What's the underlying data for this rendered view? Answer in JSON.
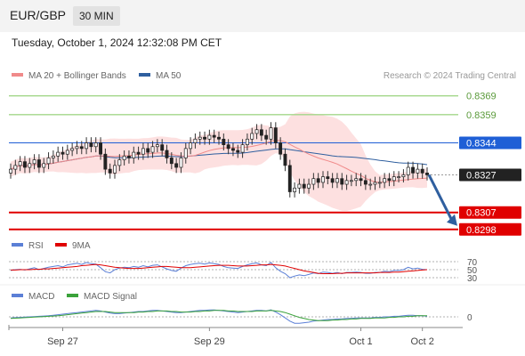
{
  "header": {
    "symbol": "EUR/GBP",
    "timeframe": "30 MIN"
  },
  "datetime": "Tuesday, October 1, 2024 12:32:08 PM CET",
  "credit": "Research © 2024 Trading Central",
  "legend_main": [
    {
      "label": "MA 20 + Bollinger Bands",
      "color": "#f08a8a"
    },
    {
      "label": "MA 50",
      "color": "#2f5f9f"
    }
  ],
  "legend_rsi": [
    {
      "label": "RSI",
      "color": "#5b7fd6"
    },
    {
      "label": "9MA",
      "color": "#e00000"
    }
  ],
  "legend_macd": [
    {
      "label": "MACD",
      "color": "#5b7fd6"
    },
    {
      "label": "MACD Signal",
      "color": "#3aa23a"
    }
  ],
  "chart_data": [
    {
      "type": "candlestick",
      "x_tick_labels": [
        "Sep 27",
        "Sep 29",
        "Oct 1",
        "Oct 2"
      ],
      "ylim": [
        0.8296,
        0.8375
      ],
      "last_price": "0.8327",
      "levels": [
        {
          "value": 0.8369,
          "label": "0.8369",
          "color": "#a3d78a",
          "kind": "resistance-light"
        },
        {
          "value": 0.8359,
          "label": "0.8359",
          "color": "#a3d78a",
          "kind": "resistance-light"
        },
        {
          "value": 0.8344,
          "label": "0.8344",
          "color": "#1f5fd6",
          "kind": "pivot"
        },
        {
          "value": 0.8327,
          "label": "0.8327",
          "color": "#222222",
          "kind": "last"
        },
        {
          "value": 0.8307,
          "label": "0.8307",
          "color": "#e00000",
          "kind": "target"
        },
        {
          "value": 0.8298,
          "label": "0.8298",
          "color": "#e00000",
          "kind": "target"
        }
      ],
      "closes": [
        0.833,
        0.8332,
        0.8334,
        0.8331,
        0.8333,
        0.8335,
        0.8331,
        0.8333,
        0.8336,
        0.8337,
        0.8339,
        0.8338,
        0.834,
        0.8341,
        0.8342,
        0.8341,
        0.8344,
        0.8342,
        0.8344,
        0.8338,
        0.833,
        0.8328,
        0.8332,
        0.8335,
        0.8337,
        0.8336,
        0.8339,
        0.8338,
        0.8341,
        0.8339,
        0.8342,
        0.8343,
        0.834,
        0.8336,
        0.8333,
        0.8331,
        0.8336,
        0.8341,
        0.8344,
        0.8346,
        0.8347,
        0.8346,
        0.8348,
        0.8347,
        0.8346,
        0.8343,
        0.8341,
        0.834,
        0.8339,
        0.8343,
        0.8346,
        0.8349,
        0.8351,
        0.8348,
        0.8346,
        0.8352,
        0.8344,
        0.8338,
        0.8332,
        0.8318,
        0.832,
        0.8322,
        0.832,
        0.8322,
        0.8325,
        0.8323,
        0.8326,
        0.8325,
        0.8323,
        0.8325,
        0.8322,
        0.8324,
        0.8324,
        0.8325,
        0.8324,
        0.8322,
        0.8322,
        0.8323,
        0.8323,
        0.8325,
        0.8324,
        0.8326,
        0.8326,
        0.8327,
        0.8331,
        0.8328,
        0.833,
        0.8328,
        0.8327
      ]
    },
    {
      "type": "line",
      "name": "RSI",
      "axis_labels": [
        "70",
        "50",
        "30"
      ],
      "series": [
        {
          "name": "RSI",
          "color": "#5b7fd6",
          "values": [
            48,
            50,
            51,
            49,
            52,
            55,
            50,
            53,
            56,
            58,
            60,
            57,
            62,
            64,
            66,
            63,
            68,
            65,
            64,
            55,
            45,
            42,
            50,
            54,
            56,
            55,
            58,
            56,
            60,
            57,
            61,
            62,
            57,
            52,
            48,
            46,
            54,
            60,
            63,
            65,
            66,
            64,
            67,
            65,
            63,
            58,
            55,
            54,
            53,
            58,
            62,
            65,
            67,
            62,
            60,
            68,
            55,
            46,
            40,
            30,
            34,
            37,
            35,
            38,
            42,
            40,
            44,
            43,
            41,
            43,
            40,
            43,
            43,
            44,
            43,
            41,
            41,
            43,
            43,
            46,
            45,
            48,
            48,
            50,
            56,
            52,
            54,
            51,
            50
          ]
        },
        {
          "name": "9MA",
          "color": "#e00000",
          "values": [
            49,
            49,
            50,
            50,
            50,
            51,
            51,
            52,
            52,
            53,
            54,
            55,
            56,
            57,
            58,
            60,
            61,
            62,
            63,
            62,
            60,
            58,
            56,
            55,
            54,
            53,
            53,
            53,
            54,
            55,
            56,
            57,
            58,
            58,
            57,
            56,
            55,
            55,
            55,
            56,
            57,
            58,
            59,
            60,
            61,
            61,
            61,
            60,
            59,
            59,
            59,
            60,
            61,
            62,
            62,
            63,
            62,
            61,
            59,
            56,
            53,
            50,
            47,
            45,
            43,
            41,
            40,
            40,
            40,
            41,
            41,
            42,
            42,
            42,
            42,
            42,
            42,
            42,
            43,
            43,
            43,
            44,
            44,
            45,
            46,
            47,
            48,
            49,
            50
          ]
        }
      ]
    },
    {
      "type": "line",
      "name": "MACD",
      "axis_labels": [
        "0"
      ],
      "series": [
        {
          "name": "MACD",
          "color": "#5b7fd6",
          "values": [
            -2,
            -1.5,
            -1,
            -0.5,
            0,
            0.5,
            1,
            1.5,
            2,
            3,
            4,
            5,
            6,
            7,
            8,
            9,
            10,
            11,
            12,
            11,
            9,
            7,
            6,
            6,
            7,
            8,
            9,
            10,
            10,
            11,
            12,
            12,
            11,
            10,
            9,
            8,
            8,
            9,
            10,
            11,
            12,
            12,
            13,
            13,
            12,
            11,
            10,
            9,
            8,
            9,
            10,
            11,
            12,
            12,
            11,
            13,
            9,
            4,
            -2,
            -8,
            -12,
            -12,
            -11,
            -10,
            -8,
            -7,
            -6,
            -5,
            -5,
            -4,
            -4,
            -3,
            -3,
            -2,
            -2,
            -2,
            -2,
            -1,
            -1,
            0,
            0,
            1,
            1,
            2,
            3,
            3,
            2,
            2,
            1
          ]
        },
        {
          "name": "MACD Signal",
          "color": "#3aa23a",
          "values": [
            -3,
            -2.5,
            -2,
            -1.5,
            -1,
            -0.5,
            0,
            0.5,
            1,
            1.5,
            2,
            3,
            4,
            5,
            6,
            7,
            8,
            9,
            10,
            10,
            10,
            9,
            8,
            8,
            8,
            8,
            8,
            9,
            9,
            10,
            10,
            11,
            11,
            11,
            10,
            10,
            9,
            9,
            9,
            10,
            10,
            11,
            11,
            12,
            12,
            12,
            11,
            11,
            10,
            10,
            10,
            10,
            11,
            11,
            11,
            12,
            11,
            10,
            8,
            5,
            2,
            -1,
            -3,
            -5,
            -6,
            -7,
            -7,
            -7,
            -6,
            -6,
            -5,
            -5,
            -4,
            -4,
            -3,
            -3,
            -3,
            -2,
            -2,
            -2,
            -1,
            -1,
            0,
            0,
            1,
            1,
            2,
            2,
            2
          ]
        }
      ]
    }
  ]
}
